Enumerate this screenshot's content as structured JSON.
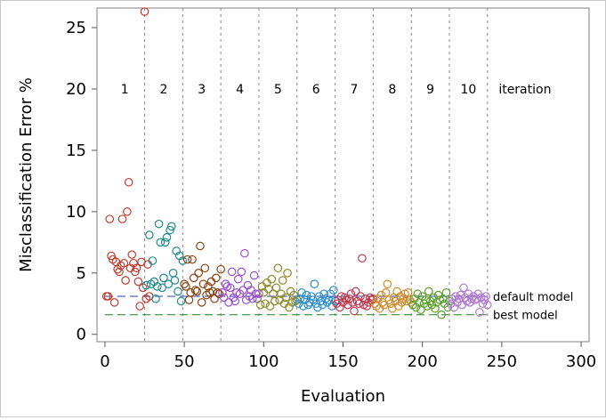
{
  "chart_data": {
    "type": "scatter",
    "xlabel": "Evaluation",
    "ylabel": "Misclassification Error %",
    "xlim": [
      -5,
      305
    ],
    "ylim": [
      -0.6,
      26.6
    ],
    "xticks": [
      "0",
      "50",
      "100",
      "150",
      "200",
      "250",
      "300"
    ],
    "yticks": [
      "0",
      "5",
      "10",
      "15",
      "20",
      "25"
    ],
    "grid": false,
    "iteration_label": "iteration",
    "iteration_numbers": [
      "1",
      "2",
      "3",
      "4",
      "5",
      "6",
      "7",
      "8",
      "9",
      "10"
    ],
    "iteration_boundaries": [
      25,
      49,
      73,
      97,
      121,
      145,
      169,
      193,
      217,
      241
    ],
    "reference_lines": [
      {
        "label": "default model",
        "y": 3.1,
        "color": "#5566bb"
      },
      {
        "label": "best model",
        "y": 1.6,
        "color": "#3a8a3a"
      }
    ],
    "iteration_colors": [
      "#c23b2e",
      "#1f8a8c",
      "#8b4513",
      "#9b4fd0",
      "#8c8a2a",
      "#2b8fd0",
      "#c03a4e",
      "#d08a2a",
      "#5aa02a",
      "#b07ad0"
    ],
    "series": [
      {
        "values": [
          [
            1,
            3.1
          ],
          [
            2,
            3.1
          ],
          [
            3,
            9.4
          ],
          [
            4,
            6.4
          ],
          [
            5,
            6.1
          ],
          [
            6,
            2.6
          ],
          [
            7,
            5.9
          ],
          [
            8,
            5.3
          ],
          [
            9,
            5.1
          ],
          [
            10,
            5.6
          ],
          [
            11,
            9.4
          ],
          [
            12,
            5.8
          ],
          [
            13,
            4.4
          ],
          [
            14,
            10.0
          ],
          [
            15,
            12.4
          ],
          [
            16,
            5.4
          ],
          [
            17,
            6.5
          ],
          [
            18,
            5.8
          ],
          [
            19,
            5.1
          ],
          [
            20,
            5.4
          ],
          [
            21,
            4.3
          ],
          [
            22,
            2.3
          ],
          [
            23,
            5.9
          ],
          [
            24,
            3.8
          ],
          [
            25,
            26.3
          ],
          [
            26,
            2.9
          ],
          [
            27,
            5.7
          ],
          [
            28,
            3.1
          ]
        ]
      },
      {
        "values": [
          [
            26,
            4.0
          ],
          [
            28,
            8.1
          ],
          [
            29,
            4.1
          ],
          [
            30,
            6.0
          ],
          [
            31,
            4.3
          ],
          [
            32,
            2.9
          ],
          [
            33,
            3.9
          ],
          [
            34,
            9.0
          ],
          [
            35,
            7.5
          ],
          [
            36,
            3.8
          ],
          [
            37,
            4.6
          ],
          [
            38,
            7.5
          ],
          [
            39,
            7.9
          ],
          [
            40,
            4.1
          ],
          [
            41,
            8.5
          ],
          [
            42,
            8.8
          ],
          [
            43,
            5.0
          ],
          [
            44,
            4.4
          ],
          [
            45,
            6.8
          ],
          [
            46,
            3.5
          ],
          [
            47,
            6.4
          ],
          [
            48,
            2.7
          ],
          [
            49,
            6.0
          ]
        ]
      },
      {
        "values": [
          [
            50,
            4.1
          ],
          [
            51,
            3.9
          ],
          [
            52,
            6.1
          ],
          [
            53,
            2.8
          ],
          [
            54,
            3.4
          ],
          [
            55,
            6.1
          ],
          [
            56,
            4.6
          ],
          [
            57,
            3.6
          ],
          [
            58,
            3.5
          ],
          [
            59,
            5.0
          ],
          [
            60,
            7.2
          ],
          [
            61,
            2.6
          ],
          [
            62,
            4.1
          ],
          [
            63,
            5.4
          ],
          [
            64,
            3.2
          ],
          [
            65,
            3.9
          ],
          [
            66,
            3.4
          ],
          [
            67,
            4.3
          ],
          [
            68,
            3.5
          ],
          [
            69,
            2.9
          ],
          [
            70,
            4.6
          ],
          [
            71,
            3.4
          ],
          [
            72,
            3.3
          ],
          [
            73,
            5.3
          ]
        ]
      },
      {
        "values": [
          [
            74,
            3.4
          ],
          [
            75,
            3.0
          ],
          [
            76,
            4.1
          ],
          [
            77,
            3.9
          ],
          [
            78,
            2.6
          ],
          [
            79,
            3.8
          ],
          [
            80,
            5.1
          ],
          [
            81,
            3.0
          ],
          [
            82,
            2.7
          ],
          [
            83,
            3.4
          ],
          [
            84,
            4.5
          ],
          [
            85,
            3.3
          ],
          [
            86,
            5.1
          ],
          [
            87,
            3.6
          ],
          [
            88,
            6.6
          ],
          [
            89,
            2.8
          ],
          [
            90,
            4.0
          ],
          [
            91,
            3.1
          ],
          [
            92,
            3.6
          ],
          [
            93,
            2.9
          ],
          [
            94,
            4.8
          ],
          [
            95,
            3.3
          ],
          [
            96,
            2.9
          ],
          [
            97,
            3.3
          ]
        ]
      },
      {
        "values": [
          [
            98,
            2.4
          ],
          [
            99,
            3.9
          ],
          [
            100,
            3.4
          ],
          [
            101,
            2.5
          ],
          [
            102,
            4.2
          ],
          [
            103,
            3.7
          ],
          [
            104,
            2.3
          ],
          [
            105,
            4.5
          ],
          [
            106,
            3.3
          ],
          [
            107,
            2.7
          ],
          [
            108,
            3.8
          ],
          [
            109,
            5.4
          ],
          [
            110,
            2.8
          ],
          [
            111,
            3.3
          ],
          [
            112,
            4.4
          ],
          [
            113,
            2.5
          ],
          [
            114,
            3.0
          ],
          [
            115,
            5.0
          ],
          [
            116,
            2.2
          ],
          [
            117,
            3.5
          ],
          [
            118,
            2.6
          ],
          [
            119,
            3.2
          ],
          [
            120,
            2.7
          ],
          [
            121,
            2.8
          ]
        ]
      },
      {
        "values": [
          [
            122,
            2.5
          ],
          [
            123,
            2.9
          ],
          [
            124,
            3.4
          ],
          [
            125,
            2.3
          ],
          [
            126,
            2.8
          ],
          [
            127,
            3.2
          ],
          [
            128,
            2.4
          ],
          [
            129,
            2.6
          ],
          [
            130,
            3.1
          ],
          [
            131,
            2.8
          ],
          [
            132,
            4.1
          ],
          [
            133,
            2.5
          ],
          [
            134,
            2.2
          ],
          [
            135,
            3.1
          ],
          [
            136,
            2.7
          ],
          [
            137,
            2.4
          ],
          [
            138,
            3.3
          ],
          [
            139,
            2.9
          ],
          [
            140,
            2.6
          ],
          [
            141,
            2.8
          ],
          [
            142,
            3.3
          ],
          [
            143,
            2.3
          ],
          [
            144,
            3.6
          ],
          [
            145,
            2.7
          ]
        ]
      },
      {
        "values": [
          [
            146,
            2.5
          ],
          [
            147,
            2.8
          ],
          [
            148,
            2.2
          ],
          [
            149,
            3.1
          ],
          [
            150,
            2.6
          ],
          [
            151,
            3.0
          ],
          [
            152,
            2.8
          ],
          [
            153,
            2.4
          ],
          [
            154,
            2.9
          ],
          [
            155,
            3.3
          ],
          [
            156,
            2.6
          ],
          [
            157,
            1.9
          ],
          [
            158,
            3.5
          ],
          [
            159,
            2.7
          ],
          [
            160,
            2.5
          ],
          [
            161,
            3.1
          ],
          [
            162,
            6.2
          ],
          [
            163,
            2.4
          ],
          [
            164,
            2.9
          ],
          [
            165,
            2.3
          ],
          [
            166,
            2.6
          ],
          [
            167,
            3.0
          ],
          [
            168,
            2.8
          ],
          [
            169,
            2.9
          ]
        ]
      },
      {
        "values": [
          [
            170,
            2.5
          ],
          [
            171,
            2.3
          ],
          [
            172,
            2.9
          ],
          [
            173,
            2.1
          ],
          [
            174,
            3.2
          ],
          [
            175,
            2.6
          ],
          [
            176,
            2.4
          ],
          [
            177,
            3.4
          ],
          [
            178,
            4.1
          ],
          [
            179,
            2.8
          ],
          [
            180,
            2.5
          ],
          [
            181,
            2.1
          ],
          [
            182,
            3.0
          ],
          [
            183,
            2.7
          ],
          [
            184,
            3.5
          ],
          [
            185,
            2.3
          ],
          [
            186,
            3.1
          ],
          [
            187,
            2.6
          ],
          [
            188,
            2.9
          ],
          [
            189,
            3.3
          ],
          [
            190,
            2.7
          ],
          [
            191,
            3.4
          ],
          [
            192,
            2.8
          ],
          [
            193,
            2.6
          ]
        ]
      },
      {
        "values": [
          [
            194,
            2.4
          ],
          [
            195,
            2.9
          ],
          [
            196,
            2.2
          ],
          [
            197,
            3.3
          ],
          [
            198,
            2.6
          ],
          [
            199,
            2.0
          ],
          [
            200,
            3.1
          ],
          [
            201,
            2.5
          ],
          [
            202,
            2.8
          ],
          [
            203,
            2.3
          ],
          [
            204,
            3.5
          ],
          [
            205,
            2.7
          ],
          [
            206,
            2.4
          ],
          [
            207,
            3.0
          ],
          [
            208,
            2.1
          ],
          [
            209,
            2.6
          ],
          [
            210,
            3.2
          ],
          [
            211,
            2.8
          ],
          [
            212,
            1.6
          ],
          [
            213,
            2.9
          ],
          [
            214,
            2.5
          ],
          [
            215,
            3.4
          ],
          [
            216,
            2.2
          ],
          [
            217,
            2.7
          ]
        ]
      },
      {
        "values": [
          [
            218,
            2.5
          ],
          [
            219,
            2.9
          ],
          [
            220,
            2.2
          ],
          [
            221,
            3.1
          ],
          [
            222,
            2.6
          ],
          [
            223,
            2.9
          ],
          [
            224,
            3.2
          ],
          [
            225,
            2.4
          ],
          [
            226,
            3.8
          ],
          [
            227,
            3.0
          ],
          [
            228,
            2.7
          ],
          [
            229,
            3.3
          ],
          [
            230,
            2.6
          ],
          [
            231,
            2.9
          ],
          [
            232,
            3.1
          ],
          [
            233,
            2.8
          ],
          [
            234,
            2.9
          ],
          [
            235,
            3.3
          ],
          [
            236,
            1.8
          ],
          [
            237,
            3.0
          ],
          [
            238,
            2.5
          ],
          [
            239,
            2.8
          ],
          [
            240,
            3.1
          ],
          [
            241,
            2.4
          ]
        ]
      }
    ]
  }
}
